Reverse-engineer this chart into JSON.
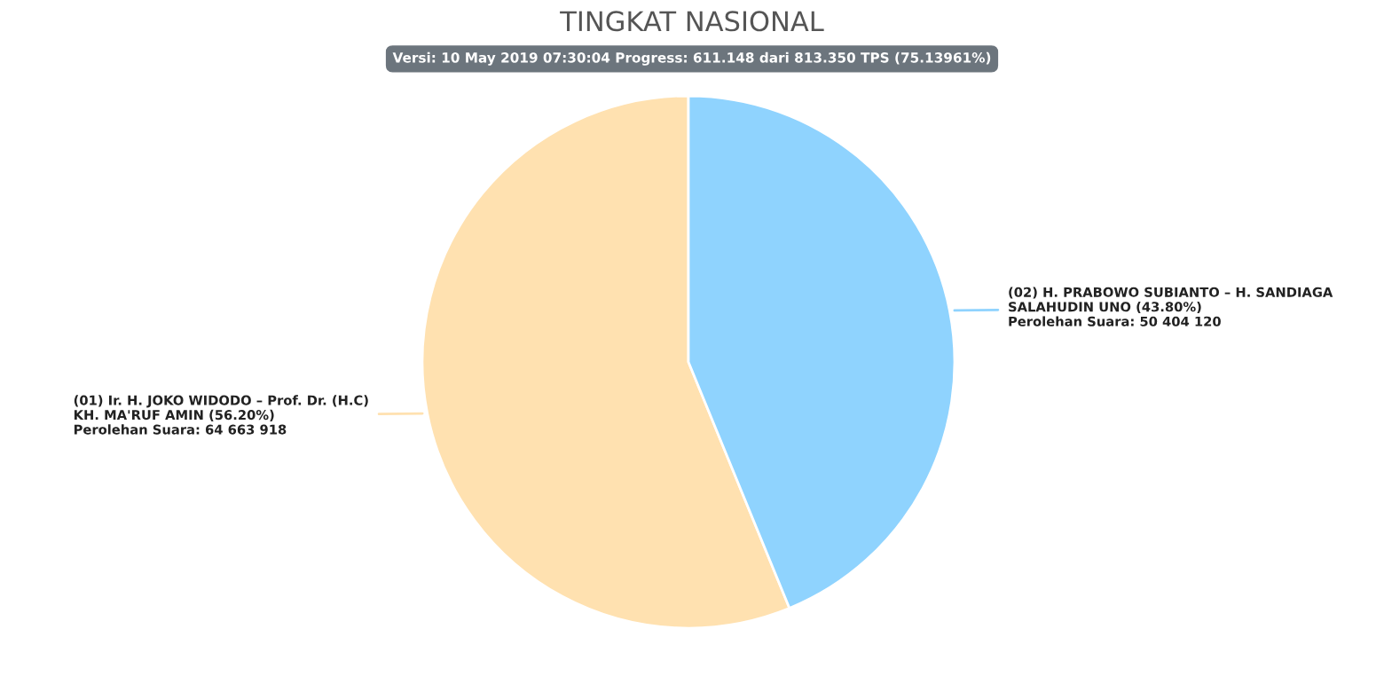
{
  "chart_data": {
    "type": "pie",
    "title": "TINGKAT NASIONAL",
    "subtitle": "Versi: 10 May 2019 07:30:04 Progress: 611.148 dari 813.350 TPS (75.13961%)",
    "categories": [
      "(01) Ir. H. JOKO WIDODO – Prof. Dr. (H.C)\nKH. MA'RUF AMIN",
      "(02) H. PRABOWO SUBIANTO – H. SANDIAGA\nSALAHUDIN UNO"
    ],
    "values": [
      64663918,
      50404120
    ],
    "value_labels": [
      "(56.20%)\nPerolehan Suara: 64 663 918",
      "(43.80%)\nPerolehan Suara: 50 404 120"
    ],
    "colors": [
      "#ffe1b0",
      "#8fd3fe"
    ],
    "legend": false
  }
}
